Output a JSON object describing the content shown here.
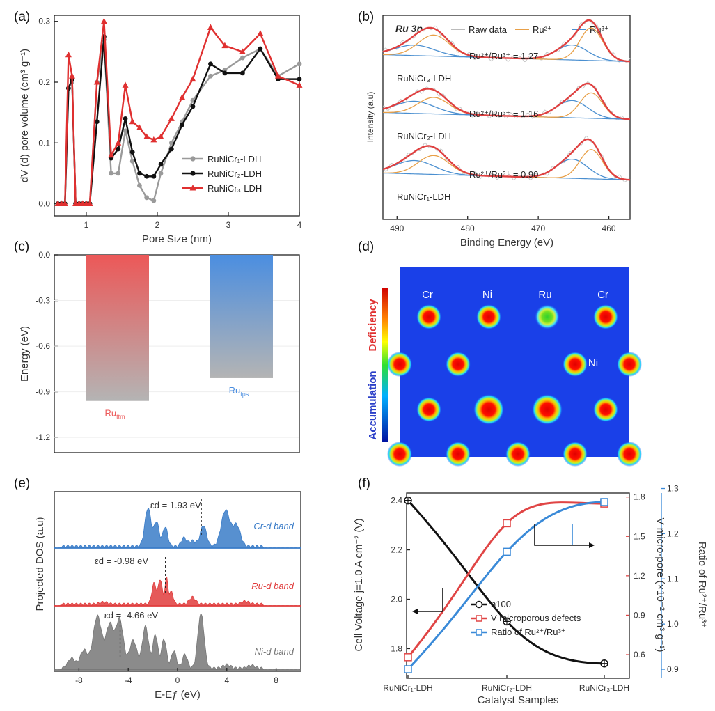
{
  "panels": [
    {
      "id": "a",
      "label": "(a)"
    },
    {
      "id": "b",
      "label": "(b)"
    },
    {
      "id": "c",
      "label": "(c)"
    },
    {
      "id": "d",
      "label": "(d)"
    },
    {
      "id": "e",
      "label": "(e)"
    },
    {
      "id": "f",
      "label": "(f)"
    }
  ],
  "chart_data": [
    {
      "panel": "a",
      "type": "line",
      "xlabel": "Pore Size (nm)",
      "ylabel": "dV (d) pore volume (cm³ g⁻¹)",
      "xlim": [
        0.55,
        4.0
      ],
      "ylim": [
        -0.02,
        0.31
      ],
      "xticks": [
        1,
        2,
        3,
        4
      ],
      "yticks": [
        0.0,
        0.1,
        0.2,
        0.3
      ],
      "legend_position": "center-right",
      "series": [
        {
          "name": "RuNiCr₁-LDH",
          "color": "#9a9a9a",
          "marker": "circle",
          "x": [
            0.6,
            0.65,
            0.7,
            0.75,
            0.8,
            0.85,
            0.9,
            0.95,
            1.0,
            1.05,
            1.15,
            1.25,
            1.35,
            1.45,
            1.55,
            1.65,
            1.75,
            1.85,
            1.95,
            2.05,
            2.2,
            2.35,
            2.5,
            2.75,
            2.95,
            3.2,
            3.45,
            3.7,
            4.0
          ],
          "y": [
            0.0,
            0.0,
            0.0,
            0.19,
            0.2,
            0.0,
            0.0,
            0.0,
            0.0,
            0.0,
            0.2,
            0.27,
            0.05,
            0.05,
            0.12,
            0.07,
            0.03,
            0.01,
            0.005,
            0.05,
            0.1,
            0.135,
            0.17,
            0.21,
            0.22,
            0.24,
            0.255,
            0.21,
            0.23
          ]
        },
        {
          "name": "RuNiCr₂-LDH",
          "color": "#111111",
          "marker": "circle",
          "x": [
            0.6,
            0.65,
            0.7,
            0.75,
            0.8,
            0.85,
            0.9,
            0.95,
            1.0,
            1.05,
            1.15,
            1.25,
            1.35,
            1.45,
            1.55,
            1.65,
            1.75,
            1.85,
            1.95,
            2.05,
            2.2,
            2.35,
            2.5,
            2.75,
            2.95,
            3.2,
            3.45,
            3.7,
            4.0
          ],
          "y": [
            0.0,
            0.0,
            0.0,
            0.19,
            0.205,
            0.0,
            0.0,
            0.0,
            0.0,
            0.0,
            0.135,
            0.275,
            0.075,
            0.09,
            0.14,
            0.085,
            0.05,
            0.045,
            0.045,
            0.065,
            0.09,
            0.13,
            0.16,
            0.23,
            0.215,
            0.215,
            0.255,
            0.205,
            0.205
          ]
        },
        {
          "name": "RuNiCr₃-LDH",
          "color": "#e03030",
          "marker": "triangle",
          "x": [
            0.6,
            0.65,
            0.7,
            0.75,
            0.8,
            0.85,
            0.9,
            0.95,
            1.0,
            1.05,
            1.15,
            1.25,
            1.35,
            1.45,
            1.55,
            1.65,
            1.75,
            1.85,
            1.95,
            2.05,
            2.2,
            2.35,
            2.5,
            2.75,
            2.95,
            3.2,
            3.45,
            3.7,
            4.0
          ],
          "y": [
            0.0,
            0.0,
            0.0,
            0.245,
            0.21,
            0.0,
            0.0,
            0.0,
            0.0,
            0.0,
            0.2,
            0.3,
            0.08,
            0.1,
            0.195,
            0.135,
            0.125,
            0.11,
            0.105,
            0.11,
            0.14,
            0.175,
            0.205,
            0.29,
            0.26,
            0.25,
            0.28,
            0.21,
            0.195
          ]
        }
      ]
    },
    {
      "panel": "b",
      "type": "line",
      "title": "Ru 3p",
      "xlabel": "Binding Energy (eV)",
      "ylabel": "Intensity (a.u)",
      "xlim": [
        492,
        457
      ],
      "xticks": [
        490,
        480,
        470,
        460
      ],
      "legend": [
        {
          "name": "Raw data",
          "color": "#bbbbbb"
        },
        {
          "name": "Ru²⁺",
          "color": "#e8a048"
        },
        {
          "name": "Ru³⁺",
          "color": "#4a8fd0"
        }
      ],
      "fit_color": "#e04040",
      "stacks": [
        {
          "sample": "RuNiCr₃-LDH",
          "ratio_text": "Ru²⁺/Ru³⁺ = 1.27"
        },
        {
          "sample": "RuNiCr₂-LDH",
          "ratio_text": "Ru²⁺/Ru³⁺ = 1.16"
        },
        {
          "sample": "RuNiCr₁-LDH",
          "ratio_text": "Ru²⁺/Ru³⁺ = 0.90"
        }
      ]
    },
    {
      "panel": "c",
      "type": "bar",
      "ylabel": "Energy (eV)",
      "ylim": [
        -1.3,
        0.0
      ],
      "yticks": [
        0.0,
        -0.3,
        -0.6,
        -0.9,
        -1.2
      ],
      "categories": [
        "Ru_ttm",
        "Ru_tps"
      ],
      "category_labels": [
        {
          "main": "Ru",
          "sub": "ttm"
        },
        {
          "main": "Ru",
          "sub": "tps"
        }
      ],
      "values": [
        -0.96,
        -0.81
      ],
      "colors": [
        "#ec5858",
        "#4b8ee0"
      ]
    },
    {
      "panel": "e",
      "type": "area",
      "xlabel": "E-Eƒ (eV)",
      "ylabel": "Projected DOS (a.u)",
      "xlim": [
        -10,
        10
      ],
      "xticks": [
        -8,
        -4,
        0,
        4,
        8
      ],
      "bands": [
        {
          "name": "Cr-d band",
          "eps_text": "εd = 1.93 eV",
          "center": 1.93,
          "color": "#3a7cc8"
        },
        {
          "name": "Ru-d band",
          "eps_text": "εd = -0.98 eV",
          "center": -0.98,
          "color": "#e03c3c"
        },
        {
          "name": "Ni-d band",
          "eps_text": "εd = -4.66 eV",
          "center": -4.66,
          "color": "#777777"
        }
      ]
    },
    {
      "panel": "f",
      "type": "line",
      "xlabel": "Catalyst Samples",
      "categories": [
        "RuNiCr₁-LDH",
        "RuNiCr₂-LDH",
        "RuNiCr₃-LDH"
      ],
      "ylabel_left": "Cell Voltage j=1.0 A cm⁻² (V)",
      "ylabel_right1": "V micro-pore (×10⁻² cm³ g⁻¹)",
      "ylabel_right2": "Ratio of Ru²⁺/Ru³⁺",
      "y_left_lim": [
        1.68,
        2.43
      ],
      "y_left_ticks": [
        1.8,
        2.0,
        2.2,
        2.4
      ],
      "y_right1_lim": [
        0.42,
        1.83
      ],
      "y_right1_ticks": [
        0.6,
        0.9,
        1.2,
        1.5,
        1.8
      ],
      "y_right2_lim": [
        0.88,
        1.29
      ],
      "y_right2_ticks": [
        0.9,
        1.0,
        1.1,
        1.2,
        1.3
      ],
      "series": [
        {
          "name": "η100",
          "axis": "left",
          "color": "#111111",
          "values": [
            2.4,
            1.91,
            1.74
          ]
        },
        {
          "name": "V microporous defects",
          "axis": "right1",
          "color": "#e04545",
          "values": [
            0.58,
            1.6,
            1.75
          ]
        },
        {
          "name": "Ratio of Ru²⁺/Ru³⁺",
          "axis": "right2",
          "color": "#3a8ad8",
          "values": [
            0.9,
            1.16,
            1.27
          ]
        }
      ]
    }
  ],
  "charge_map": {
    "panel": "d",
    "colorbar_top_label": "Deficiency",
    "colorbar_bottom_label": "Accumulation",
    "atom_labels": [
      {
        "text": "Cr",
        "color": "#ffffff"
      },
      {
        "text": "Ni",
        "color": "#ffffff"
      },
      {
        "text": "Ru",
        "color": "#ffffff"
      },
      {
        "text": "Cr",
        "color": "#ffffff"
      },
      {
        "text": "Ni",
        "color": "#ffffff"
      }
    ]
  }
}
